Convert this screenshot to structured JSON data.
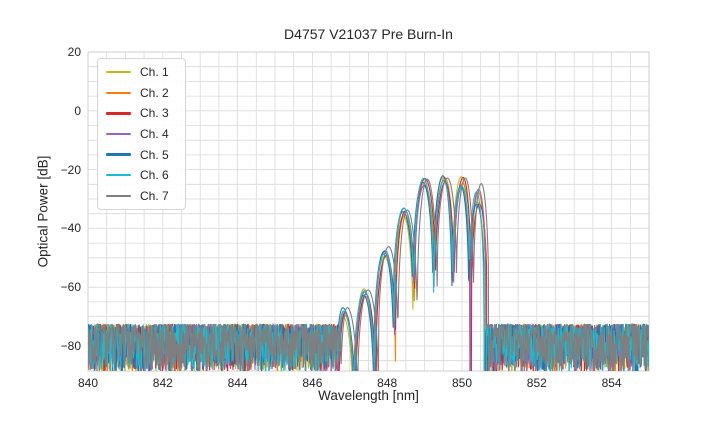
{
  "chart_data": {
    "type": "line",
    "title": "D4757 V21037 Pre Burn-In",
    "xlabel": "Wavelength [nm]",
    "ylabel": "Optical Power [dB]",
    "xlim": [
      840,
      855
    ],
    "ylim": [
      -88.5,
      20
    ],
    "xticks": [
      840,
      842,
      844,
      846,
      848,
      850,
      852,
      854
    ],
    "yticks": [
      20,
      0,
      -20,
      -40,
      -60,
      -80
    ],
    "x_gridline_step_nm": 0.5,
    "y_gridline_step_db": 5,
    "grid": true,
    "grid_color": "#d9d9d9",
    "legend_position": "upper-left",
    "series": [
      {
        "label": "Ch. 1",
        "color": "#bcbd22",
        "x_offset_nm": -0.02
      },
      {
        "label": "Ch. 2",
        "color": "#ff7f0e",
        "x_offset_nm": 0.02
      },
      {
        "label": "Ch. 3",
        "color": "#d62728",
        "x_offset_nm": 0.03
      },
      {
        "label": "Ch. 4",
        "color": "#9467bd",
        "x_offset_nm": 0.0
      },
      {
        "label": "Ch. 5",
        "color": "#1f77b4",
        "x_offset_nm": -0.03
      },
      {
        "label": "Ch. 6",
        "color": "#17becf",
        "x_offset_nm": -0.01
      },
      {
        "label": "Ch. 7",
        "color": "#7f7f7f",
        "x_offset_nm": 0.09
      }
    ],
    "signal": {
      "band_nm": [
        846.67,
        850.66
      ],
      "lobes": [
        {
          "center_nm": 846.84,
          "peak_db": -68.5
        },
        {
          "center_nm": 847.4,
          "peak_db": -62.0
        },
        {
          "center_nm": 847.95,
          "peak_db": -48.0
        },
        {
          "center_nm": 848.45,
          "peak_db": -34.5
        },
        {
          "center_nm": 848.98,
          "peak_db": -24.5
        },
        {
          "center_nm": 849.52,
          "peak_db": -22.8
        },
        {
          "center_nm": 850.0,
          "peak_db": -24.2
        },
        {
          "center_nm": 850.42,
          "peak_db": -28.5
        }
      ],
      "notch_depth_db": 33,
      "peak_jitter_db_main": 1.8,
      "peak_jitter_db_last": 5.0
    },
    "noise_floor": {
      "top_db": -72.5,
      "mean_db": -79,
      "clip_db": -88.5
    }
  }
}
